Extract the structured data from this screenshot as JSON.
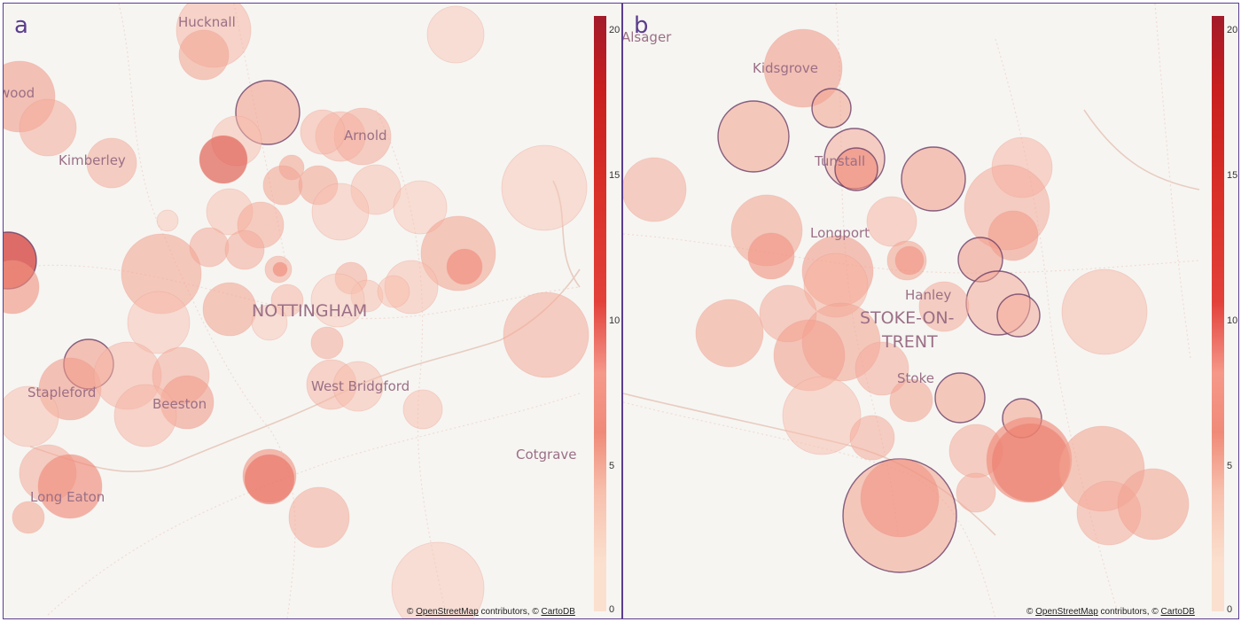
{
  "panels": [
    {
      "id": "a",
      "letter": "a",
      "places": [
        {
          "name": "Hucknall",
          "size": "sm"
        },
        {
          "name": "wood",
          "size": "sm"
        },
        {
          "name": "Arnold",
          "size": "sm"
        },
        {
          "name": "Kimberley",
          "size": "sm"
        },
        {
          "name": "NOTTINGHAM",
          "size": "lg"
        },
        {
          "name": "West Bridgford",
          "size": "sm"
        },
        {
          "name": "Stapleford",
          "size": "sm"
        },
        {
          "name": "Beeston",
          "size": "sm"
        },
        {
          "name": "Cotgrave",
          "size": "sm"
        },
        {
          "name": "Long Eaton",
          "size": "sm"
        }
      ],
      "colorbar": {
        "ticks": [
          "20",
          "15",
          "10",
          "5",
          "0"
        ]
      },
      "attribution": {
        "osm": "OpenStreetMap",
        "contributors": "contributors,",
        "carto": "CartoDB"
      }
    },
    {
      "id": "b",
      "letter": "b",
      "places": [
        {
          "name": "Alsager",
          "size": "sm"
        },
        {
          "name": "Kidsgrove",
          "size": "sm"
        },
        {
          "name": "Tunstall",
          "size": "sm"
        },
        {
          "name": "Longport",
          "size": "sm"
        },
        {
          "name": "Hanley",
          "size": "sm"
        },
        {
          "name": "STOKE-ON-",
          "size": "lg"
        },
        {
          "name": "TRENT",
          "size": "lg"
        },
        {
          "name": "Stoke",
          "size": "sm"
        }
      ],
      "colorbar": {
        "ticks": [
          "20",
          "15",
          "10",
          "5",
          "0"
        ]
      },
      "attribution": {
        "osm": "OpenStreetMap",
        "contributors": "contributors,",
        "carto": "CartoDB"
      }
    }
  ],
  "colors": {
    "border": "#5b3d8e",
    "low": "#fbe0cf",
    "mid": "#f08a78",
    "high": "#c81e1e",
    "top": "#a31b2a"
  },
  "colorscale": {
    "min": 0,
    "max": 21
  }
}
